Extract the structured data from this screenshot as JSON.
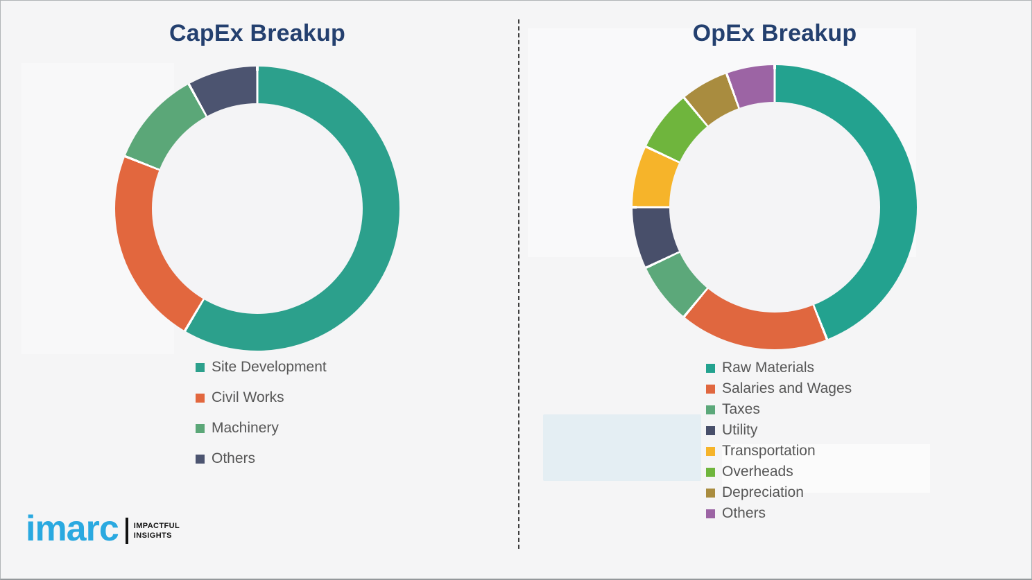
{
  "chart_data": [
    {
      "type": "pie",
      "subtype": "donut",
      "title": "CapEx Breakup",
      "categories": [
        "Site Development",
        "Civil Works",
        "Machinery",
        "Others"
      ],
      "values": [
        58.5,
        22.5,
        11,
        8
      ],
      "values_unit": "percent-estimated-from-arc-angles",
      "colors": [
        "#2ca08c",
        "#e2673e",
        "#5ba778",
        "#4c5470"
      ],
      "start_angle_deg": 0,
      "direction": "clockwise",
      "inner_radius_pct": 74,
      "legend_position": "below-left"
    },
    {
      "type": "pie",
      "subtype": "donut",
      "title": "OpEx Breakup",
      "categories": [
        "Raw Materials",
        "Salaries and Wages",
        "Taxes",
        "Utility",
        "Transportation",
        "Overheads",
        "Depreciation",
        "Others"
      ],
      "values": [
        44,
        17,
        7,
        7,
        7,
        7,
        5.5,
        5.5
      ],
      "values_unit": "percent-estimated-from-arc-angles",
      "colors": [
        "#23a28f",
        "#e0673f",
        "#5ca87a",
        "#484f6a",
        "#f6b42a",
        "#6fb53d",
        "#a98c3f",
        "#9c64a4"
      ],
      "start_angle_deg": 0,
      "direction": "clockwise",
      "inner_radius_pct": 74,
      "legend_position": "below-left"
    }
  ],
  "brand": {
    "logo_text": "imarc",
    "tagline_line1": "IMPACTFUL",
    "tagline_line2": "INSIGHTS",
    "logo_color": "#2aa9e0",
    "tagline_color": "#121212"
  },
  "palette": {
    "page_background": "#f5f5f6",
    "chart_title_color": "#24406f",
    "legend_text_color": "#565656",
    "divider_color": "#3f3f3f",
    "segment_gap_color": "#ffffff"
  }
}
